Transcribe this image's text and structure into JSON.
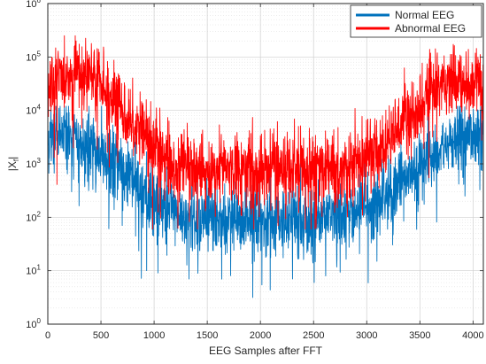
{
  "chart_data": {
    "type": "line",
    "title": "",
    "xlabel": "EEG Samples after FFT",
    "ylabel_main": "|X",
    "ylabel_sub": "f",
    "ylabel_end": "|",
    "xlim": [
      0,
      4097
    ],
    "ylim": [
      1,
      1000000
    ],
    "yscale": "log",
    "grid": "on (major and minor)",
    "legend_position": "top-right",
    "x_ticks": [
      "0",
      "500",
      "1000",
      "1500",
      "2000",
      "2500",
      "3000",
      "3500",
      "4000"
    ],
    "y_ticks": [
      {
        "base": "10",
        "exp": "0"
      },
      {
        "base": "10",
        "exp": "1"
      },
      {
        "base": "10",
        "exp": "2"
      },
      {
        "base": "10",
        "exp": "3"
      },
      {
        "base": "10",
        "exp": "4"
      },
      {
        "base": "10",
        "exp": "5"
      },
      {
        "base": "10",
        "exp": "6"
      }
    ],
    "series": [
      {
        "name": "Normal EEG",
        "color": "#0072BD",
        "envelope": {
          "x": [
            0,
            100,
            200,
            300,
            400,
            500,
            600,
            700,
            800,
            900,
            1000,
            1100,
            1200,
            1400,
            1600,
            1800,
            2000,
            2200,
            2400,
            2600,
            2800,
            2900,
            3000,
            3100,
            3200,
            3300,
            3400,
            3500,
            3600,
            3700,
            3800,
            3900,
            4000,
            4097
          ],
          "typical": [
            3000,
            3500,
            3000,
            2500,
            2000,
            1500,
            1000,
            700,
            450,
            300,
            200,
            140,
            110,
            100,
            90,
            85,
            80,
            85,
            90,
            95,
            100,
            120,
            150,
            200,
            300,
            400,
            600,
            900,
            1300,
            1800,
            2500,
            3200,
            3500,
            3000
          ],
          "peak_max": 12000,
          "min_dip": 3
        }
      },
      {
        "name": "Abnormal EEG",
        "color": "#FF0000",
        "envelope": {
          "x": [
            0,
            100,
            200,
            300,
            400,
            500,
            600,
            700,
            800,
            900,
            1000,
            1100,
            1200,
            1400,
            1600,
            1800,
            2000,
            2200,
            2400,
            2600,
            2800,
            2900,
            3000,
            3100,
            3200,
            3300,
            3400,
            3500,
            3600,
            3700,
            3800,
            3900,
            4000,
            4097
          ],
          "typical": [
            25000,
            35000,
            40000,
            50000,
            45000,
            30000,
            18000,
            10000,
            6000,
            3500,
            2000,
            1200,
            900,
            800,
            800,
            800,
            800,
            800,
            800,
            800,
            800,
            1000,
            1300,
            1800,
            2800,
            4500,
            7000,
            12000,
            20000,
            35000,
            40000,
            35000,
            28000,
            25000
          ],
          "peak_max": 250000,
          "min_dip": 60
        }
      }
    ]
  }
}
